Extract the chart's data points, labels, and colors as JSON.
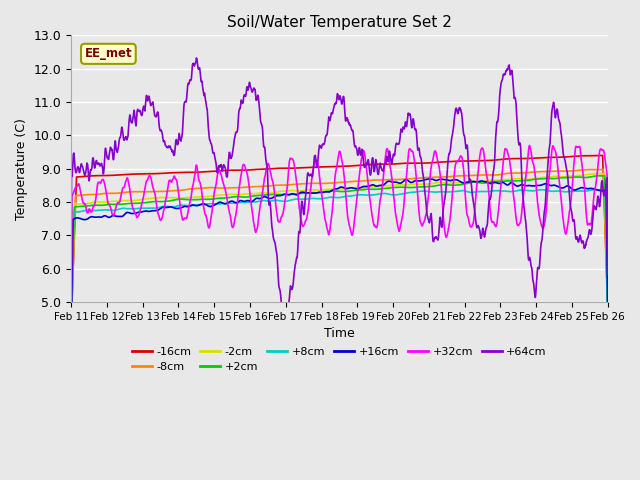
{
  "title": "Soil/Water Temperature Set 2",
  "xlabel": "Time",
  "ylabel": "Temperature (C)",
  "ylim": [
    5.0,
    13.0
  ],
  "yticks": [
    5.0,
    6.0,
    7.0,
    8.0,
    9.0,
    10.0,
    11.0,
    12.0,
    13.0
  ],
  "xtick_labels": [
    "Feb 11",
    "Feb 12",
    "Feb 13",
    "Feb 14",
    "Feb 15",
    "Feb 16",
    "Feb 17",
    "Feb 18",
    "Feb 19",
    "Feb 20",
    "Feb 21",
    "Feb 22",
    "Feb 23",
    "Feb 24",
    "Feb 25",
    "Feb 26"
  ],
  "series_order": [
    "-16cm",
    "-8cm",
    "-2cm",
    "+2cm",
    "+8cm",
    "+16cm",
    "+32cm",
    "+64cm"
  ],
  "colors": {
    "-16cm": "#dd0000",
    "-8cm": "#ff8800",
    "-2cm": "#dddd00",
    "+2cm": "#00cc00",
    "+8cm": "#00cccc",
    "+16cm": "#0000cc",
    "+32cm": "#ff00ff",
    "+64cm": "#8800cc"
  },
  "lw": 1.2,
  "bg_color": "#e8e8e8",
  "plot_bg": "#e8e8e8",
  "grid_color": "#ffffff",
  "watermark": "EE_met",
  "fig_bg": "#e8e8e8"
}
